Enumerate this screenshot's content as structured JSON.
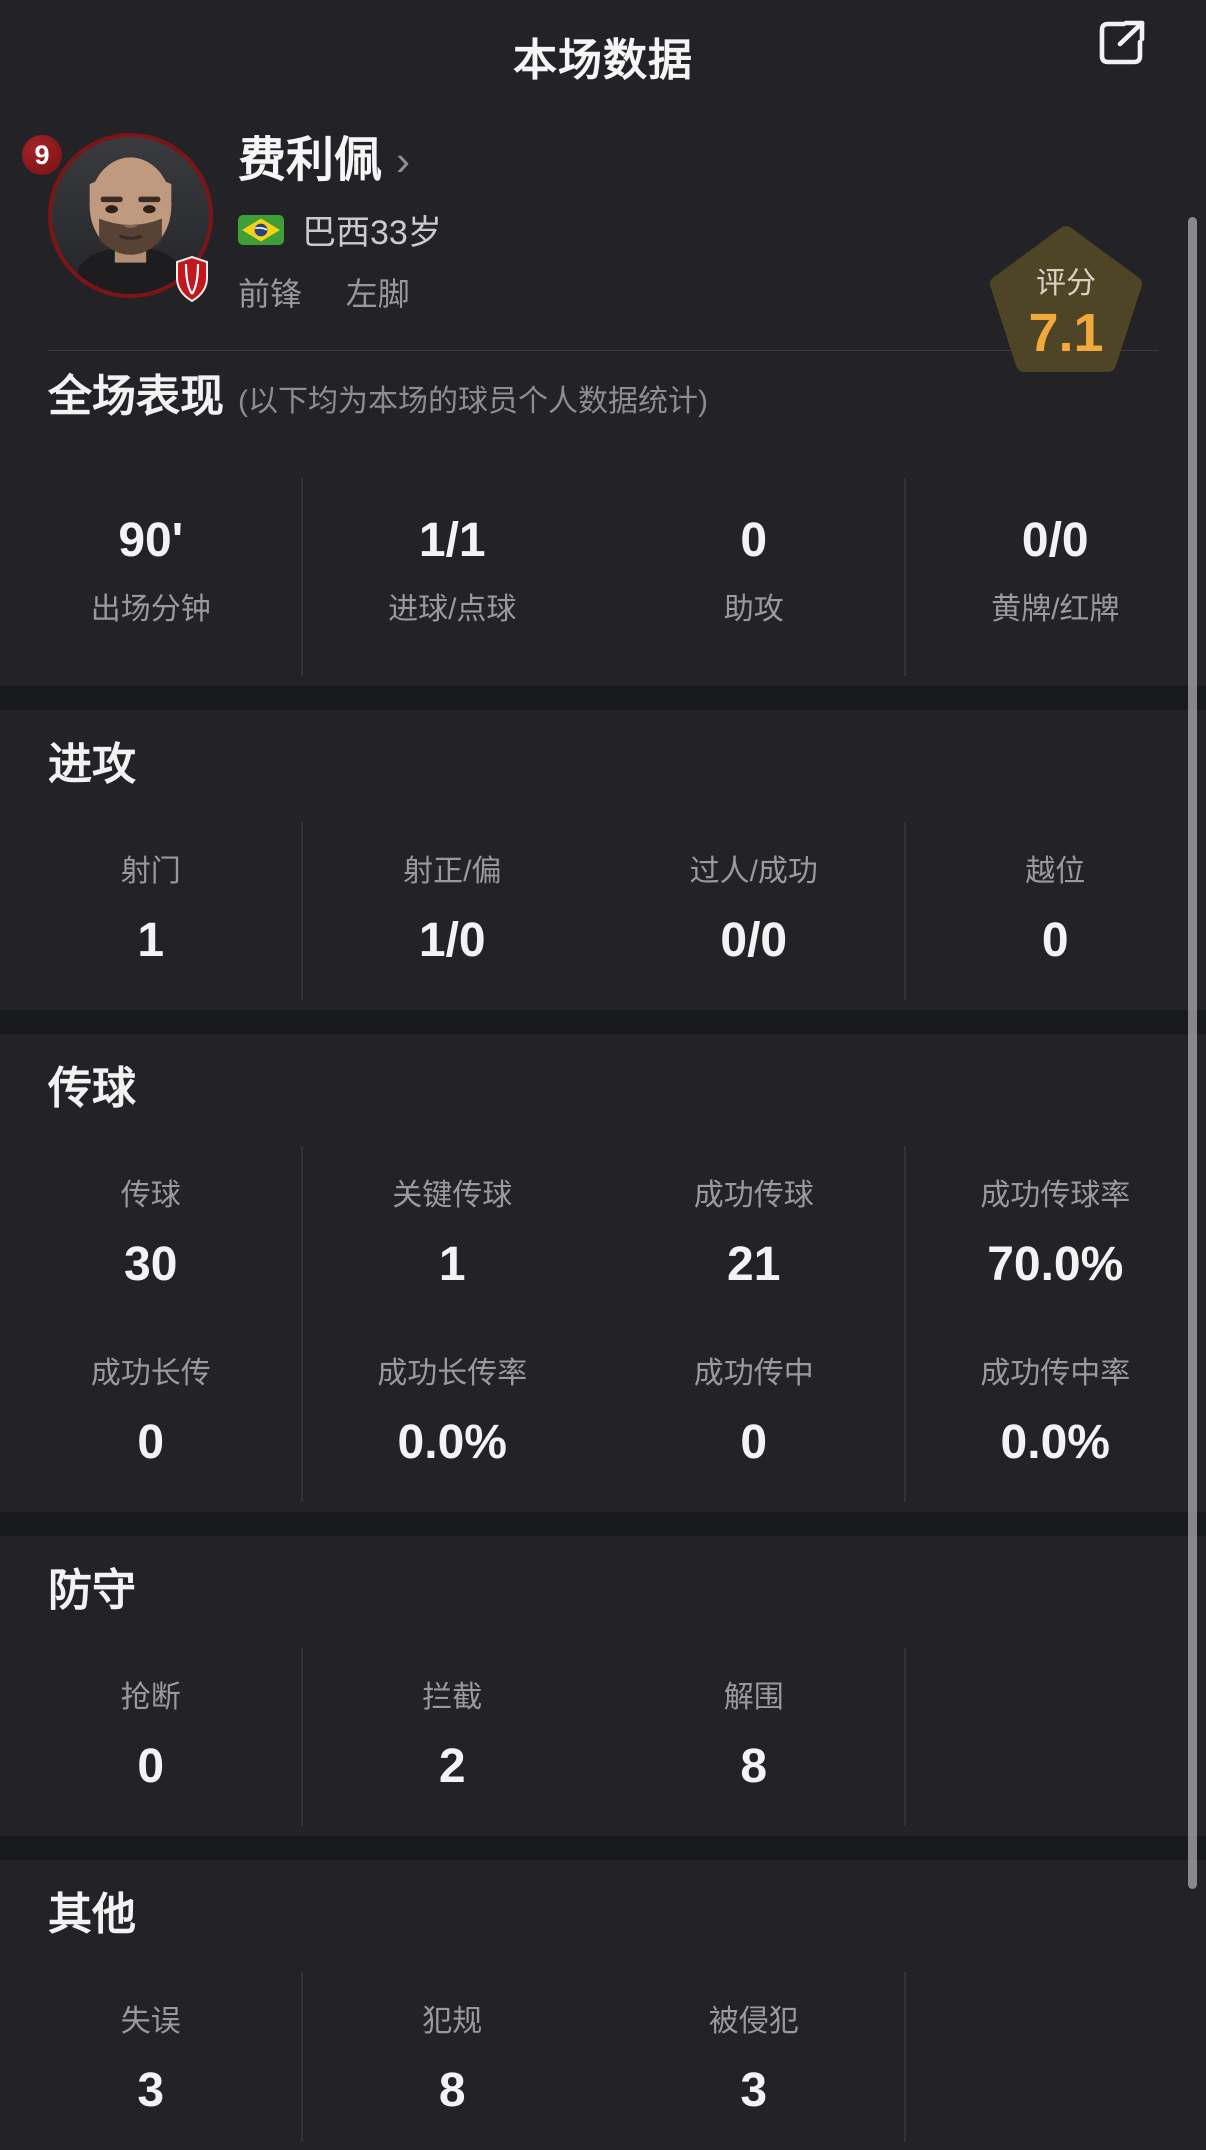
{
  "header": {
    "title": "本场数据"
  },
  "icons": {
    "share": "share-external-icon",
    "chevron_right": "›",
    "flag": "brazil-flag-icon",
    "crest": "team-crest-icon",
    "rating_shape": "pentagon-icon",
    "photo": "player-photo"
  },
  "colors": {
    "background": "#232327",
    "separator_band": "#191a1c",
    "column_divider": "#323237",
    "text_primary": "#f3f3f4",
    "text_secondary": "#9a9a9e",
    "rating_value": "#f2a93b",
    "rating_badge_bg": "#4e4526",
    "jersey_badge_bg": "#8f1b1f",
    "avatar_ring": "#7c1418",
    "flag_green": "#3f9e3a",
    "flag_yellow": "#f5d216",
    "flag_blue": "#29427e"
  },
  "player": {
    "jersey_number": "9",
    "name": "费利佩",
    "nationality": "巴西",
    "age": "33岁",
    "position": "前锋",
    "foot": "左脚",
    "rating_label": "评分",
    "rating_value": "7.1"
  },
  "sections": [
    {
      "id": "overall",
      "title": "全场表现",
      "note": "(以下均为本场的球员个人数据统计)",
      "value_top": true,
      "rows": [
        [
          {
            "label": "出场分钟",
            "value": "90'"
          },
          {
            "label": "进球/点球",
            "value": "1/1"
          },
          {
            "label": "助攻",
            "value": "0"
          },
          {
            "label": "黄牌/红牌",
            "value": "0/0"
          }
        ]
      ]
    },
    {
      "id": "attack",
      "title": "进攻",
      "rows": [
        [
          {
            "label": "射门",
            "value": "1"
          },
          {
            "label": "射正/偏",
            "value": "1/0"
          },
          {
            "label": "过人/成功",
            "value": "0/0"
          },
          {
            "label": "越位",
            "value": "0"
          }
        ]
      ]
    },
    {
      "id": "passing",
      "title": "传球",
      "rows": [
        [
          {
            "label": "传球",
            "value": "30"
          },
          {
            "label": "关键传球",
            "value": "1"
          },
          {
            "label": "成功传球",
            "value": "21"
          },
          {
            "label": "成功传球率",
            "value": "70.0%"
          }
        ],
        [
          {
            "label": "成功长传",
            "value": "0"
          },
          {
            "label": "成功长传率",
            "value": "0.0%"
          },
          {
            "label": "成功传中",
            "value": "0"
          },
          {
            "label": "成功传中率",
            "value": "0.0%"
          }
        ]
      ]
    },
    {
      "id": "defense",
      "title": "防守",
      "rows": [
        [
          {
            "label": "抢断",
            "value": "0"
          },
          {
            "label": "拦截",
            "value": "2"
          },
          {
            "label": "解围",
            "value": "8"
          },
          null
        ]
      ]
    },
    {
      "id": "other",
      "title": "其他",
      "rows": [
        [
          {
            "label": "失误",
            "value": "3"
          },
          {
            "label": "犯规",
            "value": "8"
          },
          {
            "label": "被侵犯",
            "value": "3"
          },
          null
        ]
      ]
    }
  ]
}
